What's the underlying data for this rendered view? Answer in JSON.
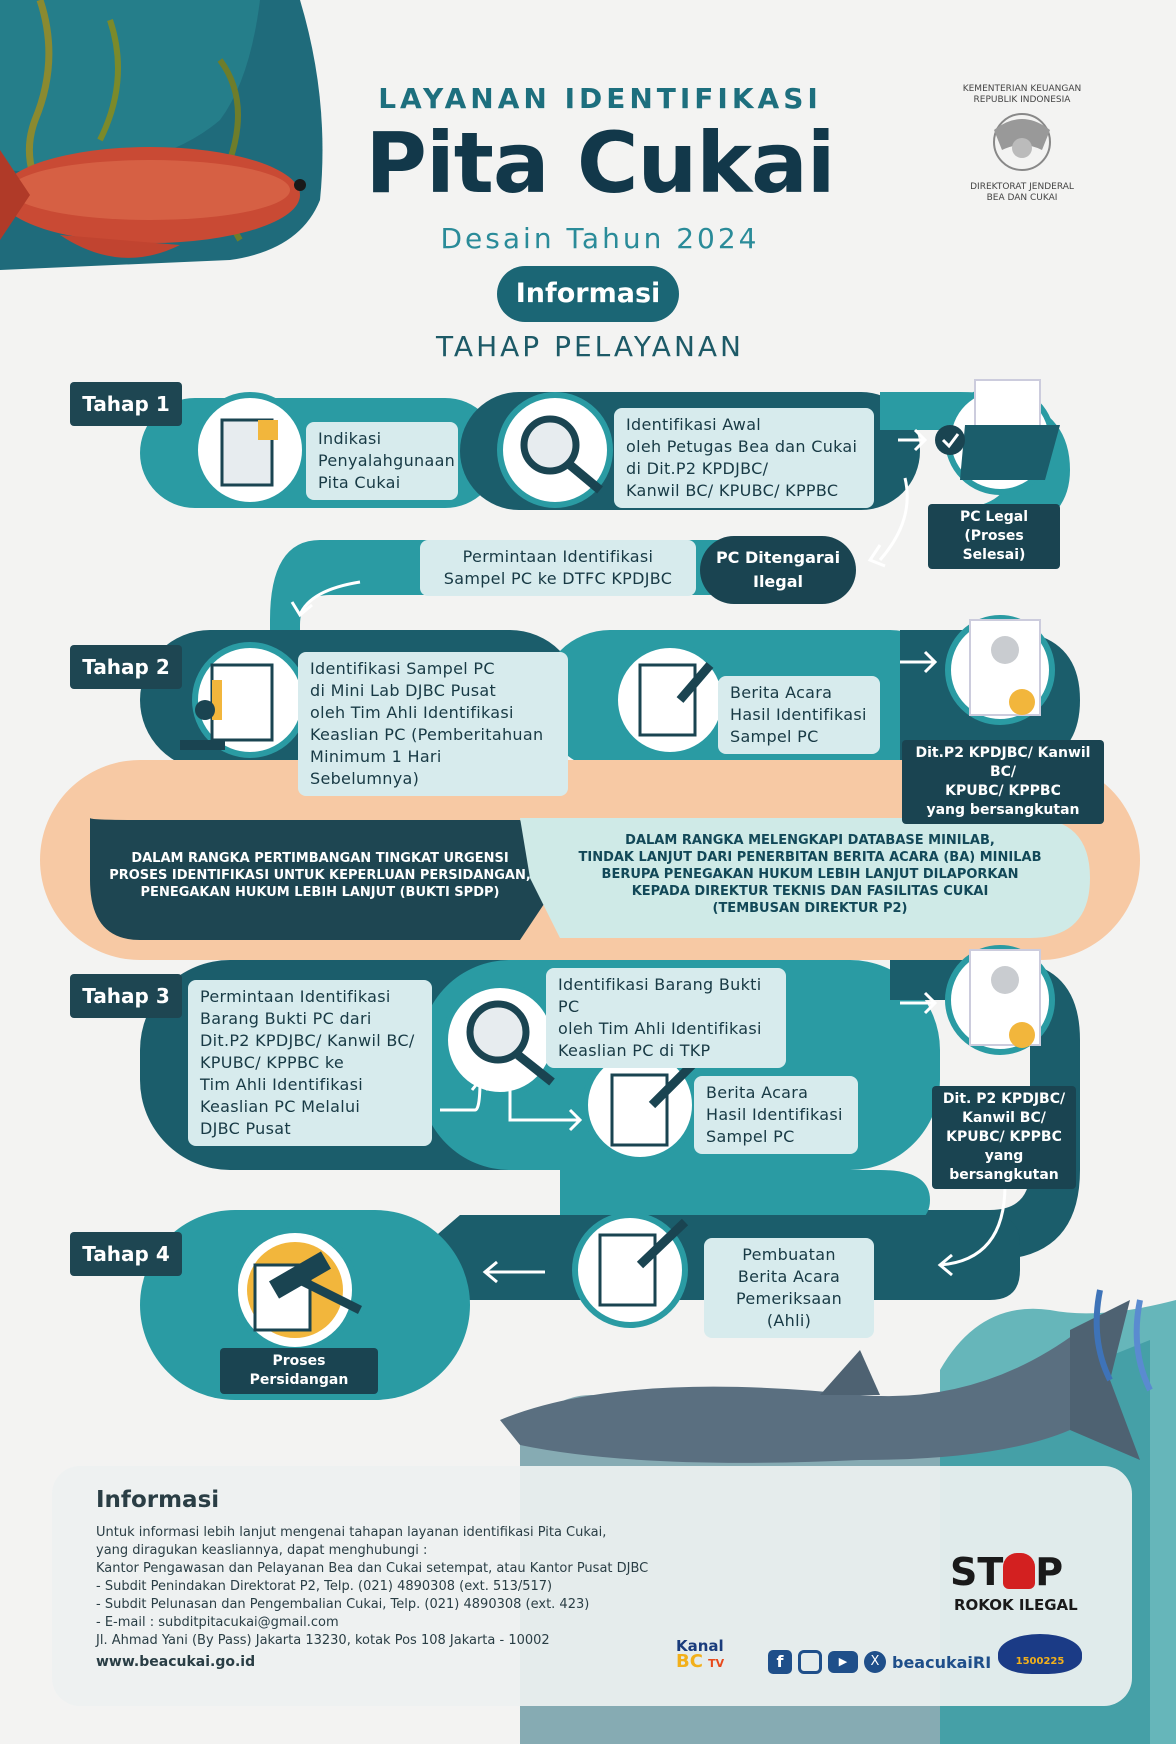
{
  "header": {
    "subtitle": "LAYANAN IDENTIFIKASI",
    "title": "Pita Cukai",
    "year": "Desain Tahun 2024",
    "info_pill": "Informasi",
    "section": "TAHAP PELAYANAN"
  },
  "ministry": {
    "top": "KEMENTERIAN KEUANGAN\nREPUBLIK INDONESIA",
    "bottom": "DIREKTORAT JENDERAL\nBEA DAN CUKAI"
  },
  "steps": {
    "tahap1": {
      "label": "Tahap 1",
      "box1": "Indikasi\nPenyalahgunaan\nPita Cukai",
      "box2": "Identifikasi Awal\noleh Petugas Bea dan Cukai\ndi Dit.P2 KPDJBC/\nKanwil BC/ KPUBC/ KPPBC",
      "legal": "PC Legal\n(Proses Selesai)",
      "illegal": "PC Ditengarai\nIlegal",
      "request": "Permintaan Identifikasi\nSampel PC ke DTFC KPDJBC"
    },
    "tahap2": {
      "label": "Tahap 2",
      "box1": "Identifikasi Sampel PC\ndi Mini Lab DJBC Pusat\noleh Tim Ahli Identifikasi\nKeaslian PC (Pemberitahuan\nMinimum 1 Hari Sebelumnya)",
      "box2": "Berita Acara\nHasil Identifikasi\nSampel PC",
      "result": "Dit.P2 KPDJBC/ Kanwil BC/\nKPUBC/ KPPBC\nyang bersangkutan"
    },
    "band": {
      "left": "DALAM RANGKA PERTIMBANGAN TINGKAT URGENSI\nPROSES IDENTIFIKASI UNTUK KEPERLUAN PERSIDANGAN,\nPENEGAKAN HUKUM LEBIH LANJUT (BUKTI SPDP)",
      "right": "DALAM RANGKA MELENGKAPI DATABASE MINILAB,\nTINDAK LANJUT DARI PENERBITAN BERITA ACARA (BA) MINILAB\nBERUPA PENEGAKAN HUKUM LEBIH LANJUT DILAPORKAN\nKEPADA DIREKTUR TEKNIS DAN FASILITAS CUKAI\n(TEMBUSAN DIREKTUR P2)"
    },
    "tahap3": {
      "label": "Tahap 3",
      "box1": "Permintaan Identifikasi\nBarang Bukti PC dari\nDit.P2 KPDJBC/ Kanwil BC/\nKPUBC/ KPPBC ke\nTim Ahli Identifikasi\nKeaslian PC Melalui\nDJBC Pusat",
      "box2": "Identifikasi Barang Bukti PC\noleh Tim Ahli Identifikasi\nKeaslian PC di TKP",
      "box3": "Berita Acara\nHasil Identifikasi\nSampel PC",
      "result": "Dit. P2 KPDJBC/\nKanwil BC/\nKPUBC/ KPPBC\nyang bersangkutan"
    },
    "tahap4": {
      "label": "Tahap 4",
      "box1": "Pembuatan\nBerita Acara\nPemeriksaan (Ahli)",
      "result": "Proses Persidangan"
    }
  },
  "info": {
    "title": "Informasi",
    "body": "Untuk informasi lebih lanjut mengenai tahapan layanan identifikasi Pita Cukai,\nyang diragukan keasliannya, dapat menghubungi :\nKantor Pengawasan dan Pelayanan Bea dan Cukai setempat, atau Kantor Pusat DJBC\n- Subdit Penindakan Direktorat P2, Telp. (021) 4890308 (ext. 513/517)\n- Subdit Pelunasan dan Pengembalian Cukai, Telp. (021) 4890308 (ext. 423)\n- E-mail : subditpitacukai@gmail.com\nJl. Ahmad Yani (By Pass) Jakarta 13230, kotak Pos 108 Jakarta - 10002",
    "website": "www.beacukai.go.id"
  },
  "footer": {
    "kanal_top": "Kanal",
    "kanal_bc": "BC",
    "kanal_tv": "TV",
    "social_handle": "beacukaiRI",
    "stop_text": "ST",
    "stop_end": "P",
    "stop_sub": "ROKOK ILEGAL",
    "hotline": "1500225"
  },
  "colors": {
    "teal_dark": "#1b5d6b",
    "teal": "#2a9ba3",
    "navy": "#1a4451",
    "peach": "#f7c9a4",
    "light_box": "#d7ebed"
  }
}
